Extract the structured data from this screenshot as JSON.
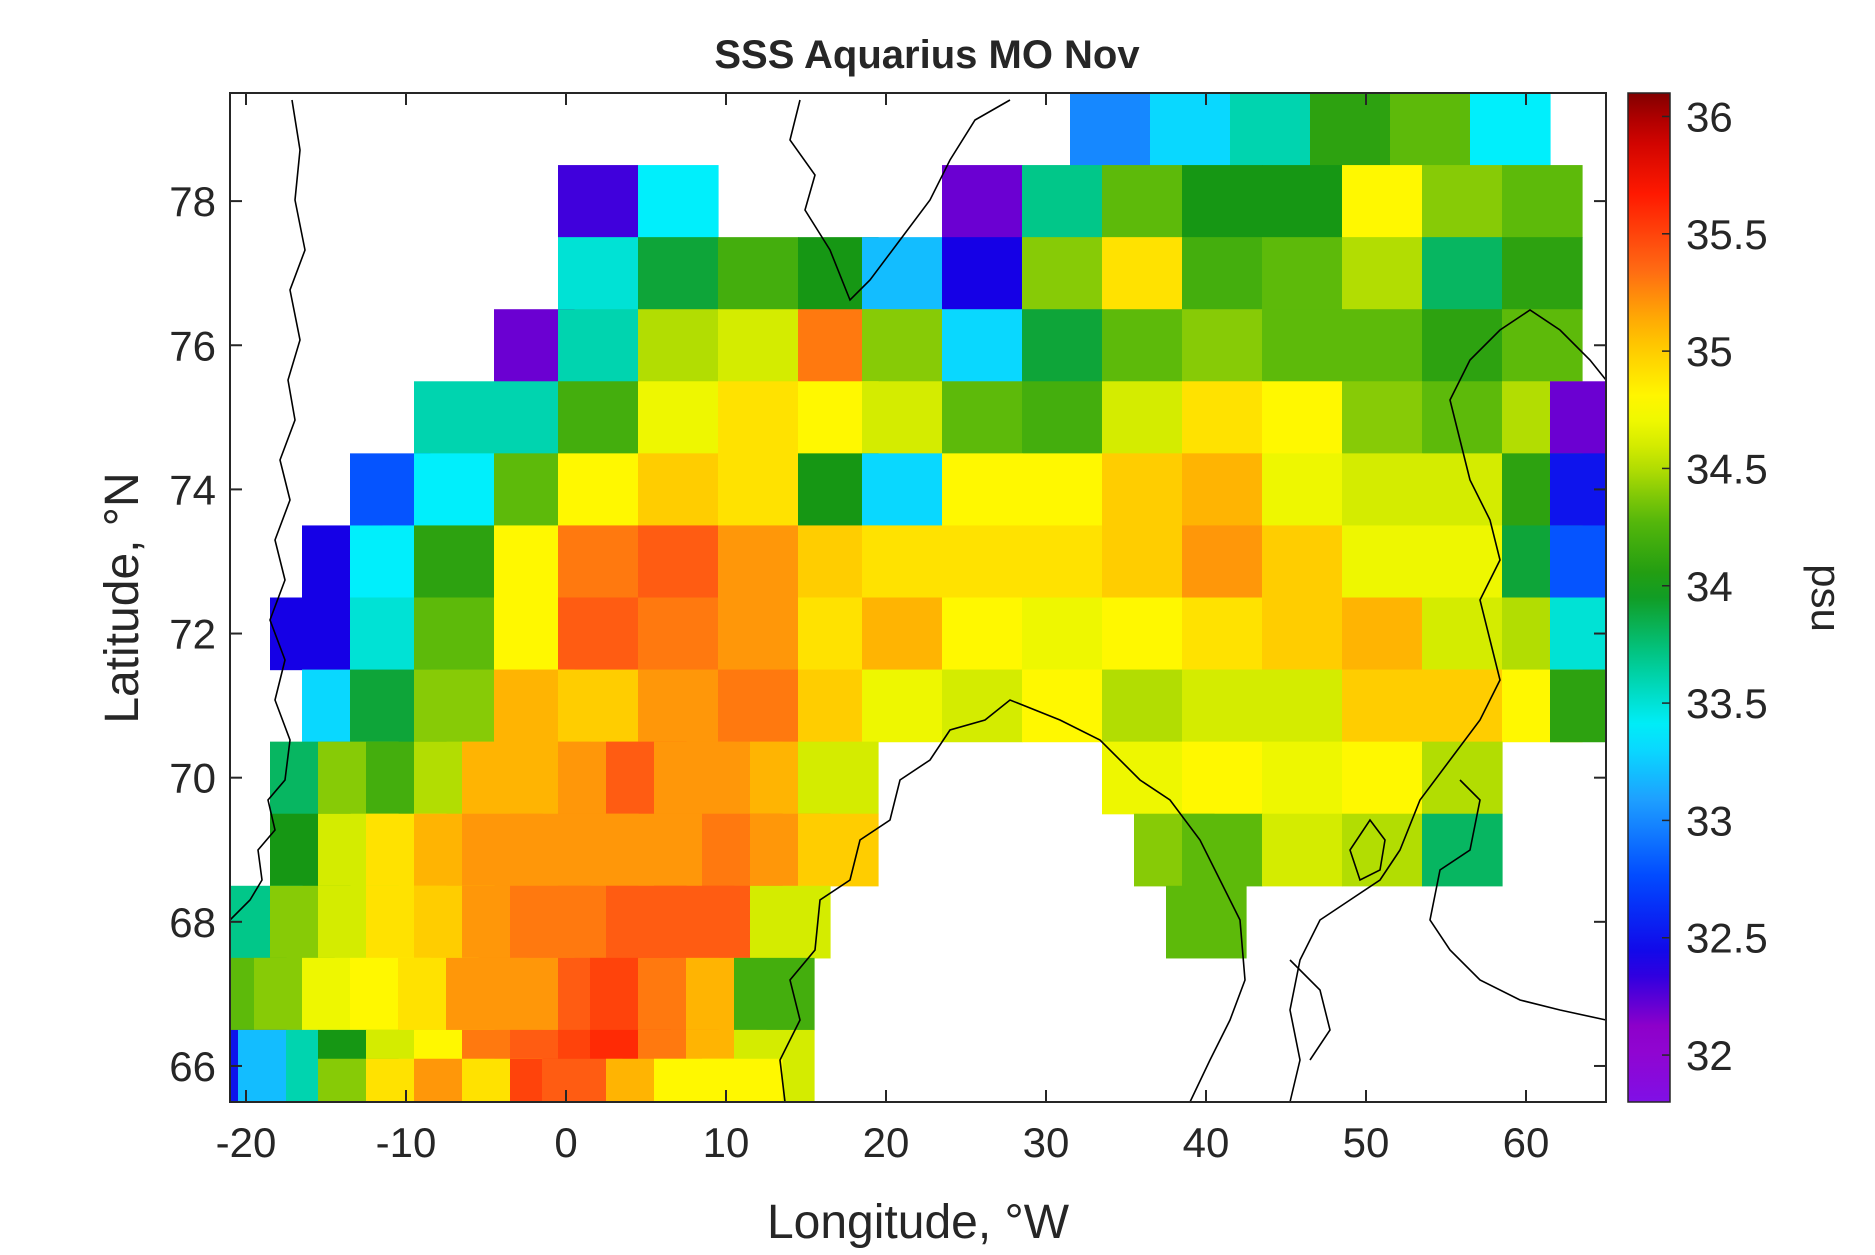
{
  "chart_data": {
    "type": "heatmap",
    "title": "SSS Aquarius MO Nov",
    "xlabel": "Longitude, °W",
    "ylabel": "Latitude, °N",
    "colorbar_label": "psu",
    "xlim": [
      -21,
      65
    ],
    "ylim": [
      65.5,
      79.5
    ],
    "clim": [
      31.8,
      36.1
    ],
    "x_ticks": [
      -20,
      -10,
      0,
      10,
      20,
      30,
      40,
      50,
      60
    ],
    "y_ticks": [
      66,
      68,
      70,
      72,
      74,
      76,
      78
    ],
    "colorbar_ticks": [
      32,
      32.5,
      33,
      33.5,
      34,
      34.5,
      35,
      35.5,
      36
    ],
    "grid": false,
    "colormap": "rainbow (violet-blue-cyan-green-yellow-orange-red-darkred)",
    "cell_size": {
      "lon": 5,
      "lat": 1
    },
    "rows": [
      {
        "lat": 79,
        "cells": [
          [
            34,
            33.0
          ],
          [
            39,
            33.3
          ],
          [
            44,
            33.6
          ],
          [
            49,
            34.1
          ],
          [
            54,
            34.3
          ],
          [
            59,
            33.4
          ]
        ]
      },
      {
        "lat": 78,
        "cells": [
          [
            2,
            32.3
          ],
          [
            7,
            33.4
          ],
          [
            26,
            32.2
          ],
          [
            31,
            33.7
          ],
          [
            36,
            34.3
          ],
          [
            41,
            34.0
          ],
          [
            46,
            34.0
          ],
          [
            51,
            34.8
          ],
          [
            56,
            34.4
          ],
          [
            61,
            34.3
          ]
        ]
      },
      {
        "lat": 77,
        "cells": [
          [
            2,
            33.5
          ],
          [
            7,
            33.9
          ],
          [
            12,
            34.2
          ],
          [
            17,
            34.0
          ],
          [
            21,
            33.2
          ],
          [
            26,
            32.4
          ],
          [
            31,
            34.4
          ],
          [
            36,
            34.9
          ],
          [
            41,
            34.2
          ],
          [
            46,
            34.3
          ],
          [
            51,
            34.5
          ],
          [
            56,
            33.8
          ],
          [
            61,
            34.1
          ]
        ]
      },
      {
        "lat": 76,
        "cells": [
          [
            -2,
            32.2
          ],
          [
            2,
            33.6
          ],
          [
            7,
            34.5
          ],
          [
            12,
            34.6
          ],
          [
            17,
            35.3
          ],
          [
            21,
            34.4
          ],
          [
            26,
            33.3
          ],
          [
            31,
            33.9
          ],
          [
            36,
            34.3
          ],
          [
            41,
            34.4
          ],
          [
            46,
            34.3
          ],
          [
            51,
            34.3
          ],
          [
            56,
            34.1
          ],
          [
            61,
            34.3
          ]
        ]
      },
      {
        "lat": 75,
        "cells": [
          [
            -7,
            33.6
          ],
          [
            -2,
            33.6
          ],
          [
            2,
            34.2
          ],
          [
            7,
            34.7
          ],
          [
            12,
            34.9
          ],
          [
            17,
            34.8
          ],
          [
            21,
            34.6
          ],
          [
            26,
            34.3
          ],
          [
            31,
            34.2
          ],
          [
            36,
            34.6
          ],
          [
            41,
            34.9
          ],
          [
            46,
            34.8
          ],
          [
            51,
            34.4
          ],
          [
            56,
            34.3
          ],
          [
            61,
            34.5
          ],
          [
            64,
            32.2
          ]
        ]
      },
      {
        "lat": 74,
        "cells": [
          [
            -11,
            32.8
          ],
          [
            -7,
            33.4
          ],
          [
            -2,
            34.3
          ],
          [
            2,
            34.8
          ],
          [
            7,
            35.0
          ],
          [
            12,
            34.9
          ],
          [
            17,
            34.0
          ],
          [
            21,
            33.3
          ],
          [
            26,
            34.8
          ],
          [
            31,
            34.8
          ],
          [
            36,
            35.0
          ],
          [
            41,
            35.1
          ],
          [
            46,
            34.7
          ],
          [
            51,
            34.6
          ],
          [
            56,
            34.6
          ],
          [
            61,
            34.1
          ],
          [
            64,
            32.5
          ]
        ]
      },
      {
        "lat": 73,
        "cells": [
          [
            -14,
            32.4
          ],
          [
            -11,
            33.4
          ],
          [
            -7,
            34.1
          ],
          [
            -2,
            34.8
          ],
          [
            2,
            35.3
          ],
          [
            7,
            35.4
          ],
          [
            12,
            35.2
          ],
          [
            17,
            35.0
          ],
          [
            21,
            34.9
          ],
          [
            26,
            34.9
          ],
          [
            31,
            34.9
          ],
          [
            36,
            35.0
          ],
          [
            41,
            35.2
          ],
          [
            46,
            35.0
          ],
          [
            51,
            34.7
          ],
          [
            56,
            34.7
          ],
          [
            61,
            33.9
          ],
          [
            64,
            32.8
          ]
        ]
      },
      {
        "lat": 72,
        "cells": [
          [
            -16,
            32.4
          ],
          [
            -11,
            33.5
          ],
          [
            -7,
            34.3
          ],
          [
            -2,
            34.8
          ],
          [
            2,
            35.4
          ],
          [
            7,
            35.3
          ],
          [
            12,
            35.2
          ],
          [
            17,
            34.9
          ],
          [
            21,
            35.1
          ],
          [
            26,
            34.8
          ],
          [
            31,
            34.7
          ],
          [
            36,
            34.8
          ],
          [
            41,
            34.9
          ],
          [
            46,
            35.0
          ],
          [
            51,
            35.1
          ],
          [
            56,
            34.6
          ],
          [
            61,
            34.5
          ],
          [
            64,
            33.5
          ]
        ]
      },
      {
        "lat": 71,
        "cells": [
          [
            -14,
            33.3
          ],
          [
            -11,
            33.9
          ],
          [
            -7,
            34.4
          ],
          [
            -2,
            35.1
          ],
          [
            2,
            35.0
          ],
          [
            7,
            35.2
          ],
          [
            12,
            35.3
          ],
          [
            17,
            35.0
          ],
          [
            21,
            34.7
          ],
          [
            26,
            34.6
          ],
          [
            31,
            34.8
          ],
          [
            36,
            34.5
          ],
          [
            41,
            34.6
          ],
          [
            46,
            34.6
          ],
          [
            51,
            35.0
          ],
          [
            56,
            35.0
          ],
          [
            61,
            34.8
          ],
          [
            64,
            34.1
          ]
        ]
      },
      {
        "lat": 70,
        "cells": [
          [
            -16,
            33.8
          ],
          [
            -13,
            34.4
          ],
          [
            -10,
            34.2
          ],
          [
            -7,
            34.5
          ],
          [
            -4,
            35.1
          ],
          [
            -1,
            35.1
          ],
          [
            2,
            35.2
          ],
          [
            5,
            35.4
          ],
          [
            8,
            35.2
          ],
          [
            11,
            35.2
          ],
          [
            14,
            35.1
          ],
          [
            17,
            34.6
          ],
          [
            36,
            34.7
          ],
          [
            41,
            34.8
          ],
          [
            46,
            34.7
          ],
          [
            51,
            34.8
          ],
          [
            56,
            34.5
          ]
        ]
      },
      {
        "lat": 69,
        "cells": [
          [
            -16,
            34.0
          ],
          [
            -13,
            34.6
          ],
          [
            -10,
            34.9
          ],
          [
            -7,
            35.1
          ],
          [
            -4,
            35.2
          ],
          [
            -1,
            35.2
          ],
          [
            2,
            35.2
          ],
          [
            5,
            35.2
          ],
          [
            8,
            35.2
          ],
          [
            11,
            35.3
          ],
          [
            14,
            35.2
          ],
          [
            17,
            35.0
          ],
          [
            38,
            34.4
          ],
          [
            41,
            34.3
          ],
          [
            46,
            34.6
          ],
          [
            51,
            34.5
          ],
          [
            56,
            33.8
          ]
        ]
      },
      {
        "lat": 68,
        "cells": [
          [
            -19,
            33.7
          ],
          [
            -16,
            34.4
          ],
          [
            -13,
            34.6
          ],
          [
            -10,
            34.9
          ],
          [
            -7,
            35.0
          ],
          [
            -4,
            35.2
          ],
          [
            -1,
            35.3
          ],
          [
            2,
            35.3
          ],
          [
            5,
            35.4
          ],
          [
            8,
            35.4
          ],
          [
            11,
            35.4
          ],
          [
            14,
            34.6
          ],
          [
            40,
            34.3
          ]
        ]
      },
      {
        "lat": 67,
        "cells": [
          [
            -20,
            34.3
          ],
          [
            -17,
            34.4
          ],
          [
            -14,
            34.7
          ],
          [
            -11,
            34.8
          ],
          [
            -8,
            34.9
          ],
          [
            -5,
            35.2
          ],
          [
            -2,
            35.2
          ],
          [
            2,
            35.4
          ],
          [
            4,
            35.5
          ],
          [
            7,
            35.3
          ],
          [
            10,
            35.1
          ],
          [
            13,
            34.2
          ]
        ]
      },
      {
        "lat": 66,
        "cells": [
          [
            -20,
            32.5
          ],
          [
            -18,
            33.2
          ],
          [
            -15,
            33.6
          ],
          [
            -13,
            34.0
          ],
          [
            -10,
            34.6
          ],
          [
            -7,
            34.8
          ],
          [
            -4,
            35.3
          ],
          [
            -1,
            35.4
          ],
          [
            2,
            35.5
          ],
          [
            4,
            35.6
          ],
          [
            7,
            35.3
          ],
          [
            10,
            35.1
          ],
          [
            13,
            34.6
          ]
        ]
      },
      {
        "lat": 65.6,
        "cells": [
          [
            -13,
            34.4
          ],
          [
            -10,
            34.9
          ],
          [
            -7,
            35.2
          ],
          [
            -4,
            34.9
          ],
          [
            -1,
            35.5
          ],
          [
            1,
            35.4
          ],
          [
            5,
            35.1
          ],
          [
            8,
            34.8
          ],
          [
            11,
            34.8
          ]
        ]
      }
    ]
  }
}
